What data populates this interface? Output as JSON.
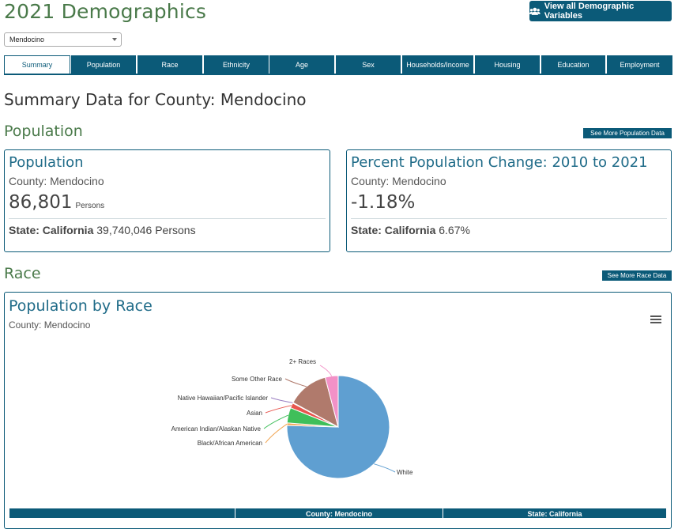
{
  "header": {
    "title": "2021 Demographics",
    "view_all_label": "View all Demographic Variables"
  },
  "county_select": {
    "value": "Mendocino"
  },
  "tabs": [
    {
      "label": "Summary",
      "active": true
    },
    {
      "label": "Population"
    },
    {
      "label": "Race"
    },
    {
      "label": "Ethnicity"
    },
    {
      "label": "Age"
    },
    {
      "label": "Sex"
    },
    {
      "label": "Households/Income"
    },
    {
      "label": "Housing"
    },
    {
      "label": "Education"
    },
    {
      "label": "Employment"
    }
  ],
  "summary_heading": "Summary Data for County: Mendocino",
  "population_section": {
    "heading": "Population",
    "see_more_label": "See More Population Data",
    "population_card": {
      "title": "Population",
      "county": "County: Mendocino",
      "value": "86,801",
      "unit": "Persons",
      "state_label": "State: California",
      "state_value": "39,740,046 Persons"
    },
    "change_card": {
      "title": "Percent Population Change: 2010 to 2021",
      "county": "County: Mendocino",
      "value": "-1.18%",
      "state_label": "State: California",
      "state_value": "6.67%"
    }
  },
  "race_section": {
    "heading": "Race",
    "see_more_label": "See More Race Data",
    "chart_title": "Population by Race",
    "chart_subtitle": "County: Mendocino",
    "table_headers": [
      "",
      "County: Mendocino",
      "State: California"
    ]
  },
  "chart_data": {
    "type": "pie",
    "title": "Population by Race",
    "subtitle": "County: Mendocino",
    "slices": [
      {
        "name": "White",
        "value": 75.5,
        "color": "#5f9fd1"
      },
      {
        "name": "Black/African American",
        "value": 0.8,
        "color": "#f2a654"
      },
      {
        "name": "American Indian/Alaskan Native",
        "value": 4.8,
        "color": "#3fbf5a"
      },
      {
        "name": "Asian",
        "value": 1.6,
        "color": "#e8554e"
      },
      {
        "name": "Native Hawaiian/Pacific Islander",
        "value": 0.2,
        "color": "#9a7ec2"
      },
      {
        "name": "Some Other Race",
        "value": 13.0,
        "color": "#b07a6c"
      },
      {
        "name": "2+ Races",
        "value": 4.1,
        "color": "#f291c7"
      }
    ]
  }
}
